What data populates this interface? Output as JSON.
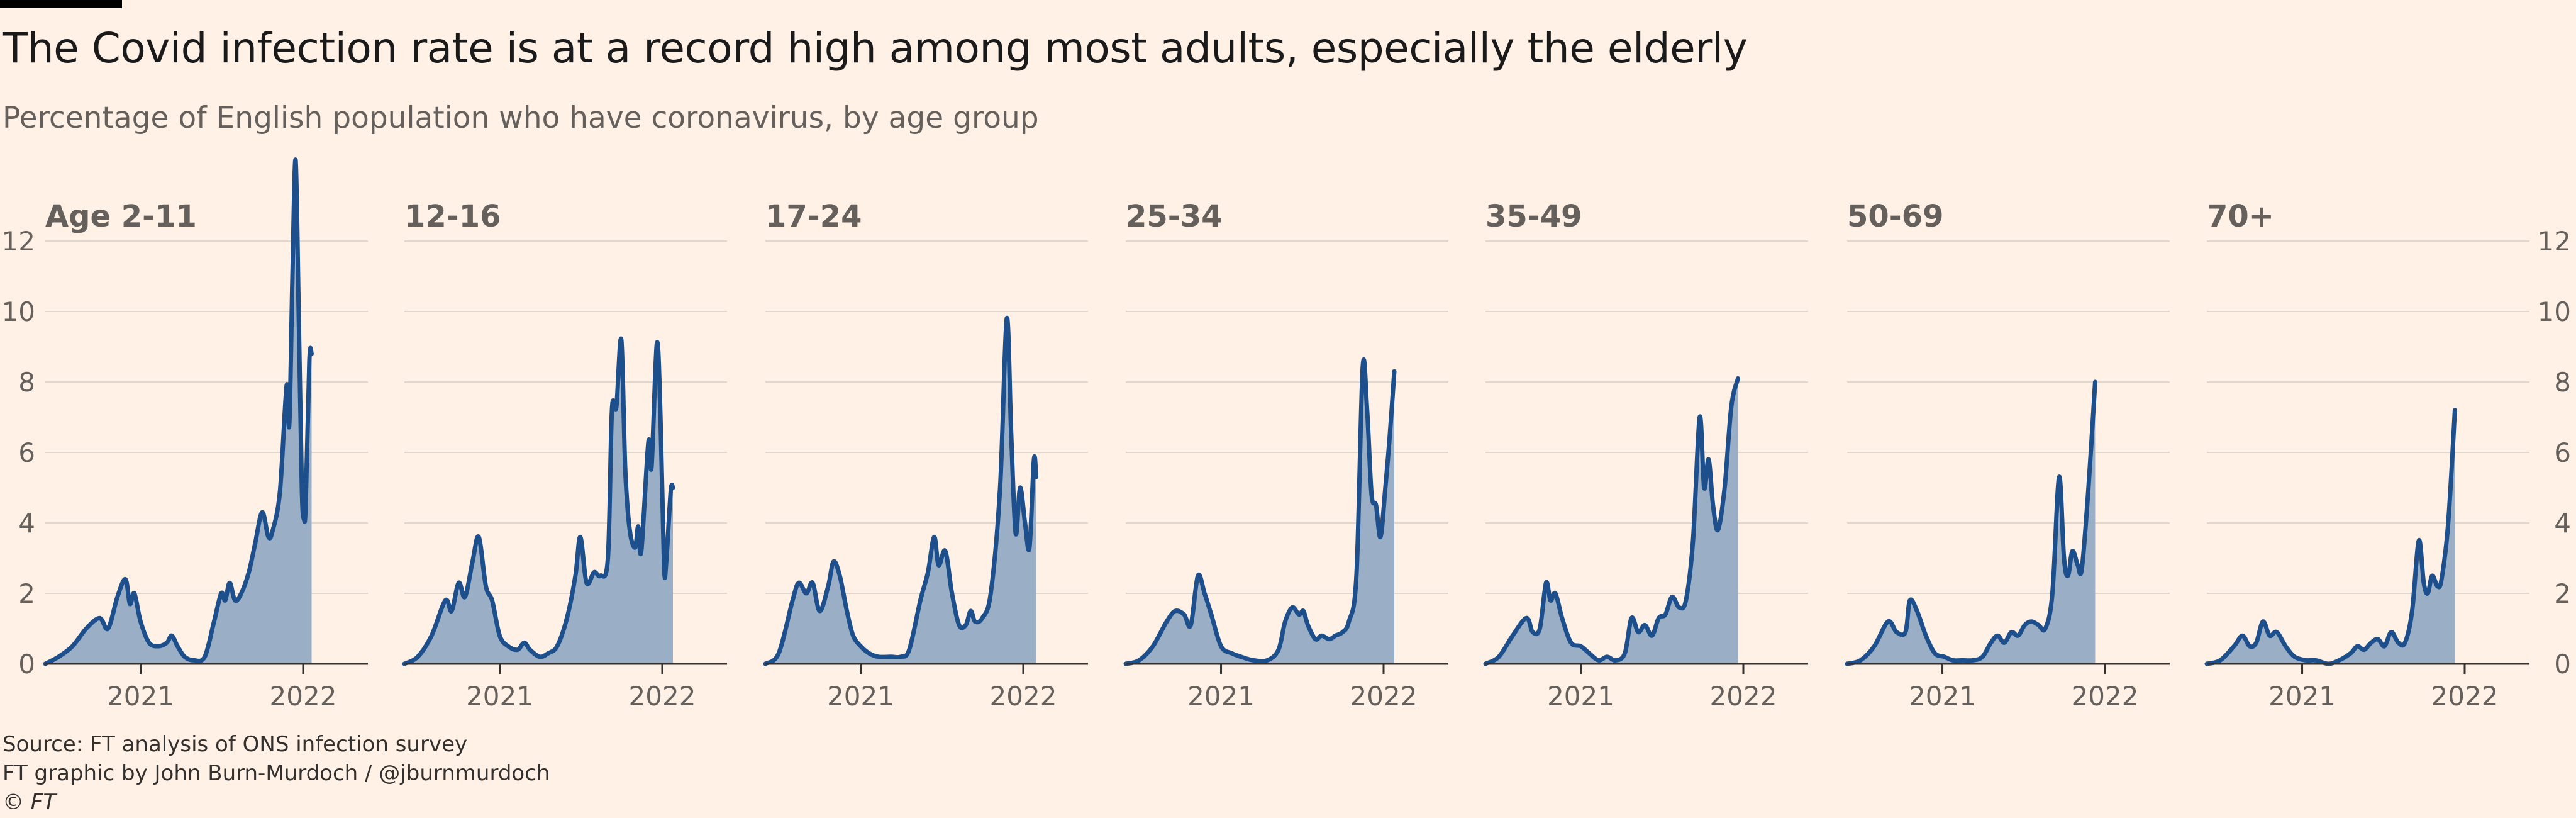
{
  "header": {
    "title": "The Covid infection rate is at a record high among most adults, especially the elderly",
    "subtitle": "Percentage of English population who have coronavirus, by age group"
  },
  "footer": {
    "source": "Source: FT analysis of ONS infection survey",
    "credit": "FT graphic by John Burn-Murdoch / @jburnmurdoch",
    "copyright": "© FT"
  },
  "colors": {
    "background": "#fff1e5",
    "line": "#1c4f8c",
    "area": "#9aafc5",
    "grid": "#e0d7cf",
    "axis": "#33302e",
    "text": "#66605c"
  },
  "chart_data": {
    "type": "area",
    "layout": "small-multiples",
    "ylim": [
      0,
      14
    ],
    "yticks": [
      0,
      2,
      4,
      6,
      8,
      10,
      12
    ],
    "x_range": [
      "2020-06-01",
      "2022-01-10"
    ],
    "x_ticks": [
      {
        "date": "2021-01-01",
        "label": "2021"
      },
      {
        "date": "2022-01-01",
        "label": "2022"
      }
    ],
    "grid": true,
    "series": [
      {
        "name": "Age 2-11",
        "points": [
          [
            "2020-06-01",
            0
          ],
          [
            "2020-07-01",
            0.2
          ],
          [
            "2020-08-01",
            0.5
          ],
          [
            "2020-09-01",
            1.0
          ],
          [
            "2020-10-01",
            1.3
          ],
          [
            "2020-10-20",
            1.0
          ],
          [
            "2020-11-10",
            1.9
          ],
          [
            "2020-11-28",
            2.4
          ],
          [
            "2020-12-08",
            1.7
          ],
          [
            "2020-12-18",
            2.0
          ],
          [
            "2021-01-01",
            1.2
          ],
          [
            "2021-01-20",
            0.6
          ],
          [
            "2021-02-10",
            0.5
          ],
          [
            "2021-03-01",
            0.6
          ],
          [
            "2021-03-12",
            0.8
          ],
          [
            "2021-03-25",
            0.5
          ],
          [
            "2021-04-10",
            0.2
          ],
          [
            "2021-05-01",
            0.1
          ],
          [
            "2021-05-25",
            0.2
          ],
          [
            "2021-06-15",
            1.2
          ],
          [
            "2021-07-01",
            2.0
          ],
          [
            "2021-07-10",
            1.8
          ],
          [
            "2021-07-20",
            2.3
          ],
          [
            "2021-08-01",
            1.8
          ],
          [
            "2021-08-15",
            2.0
          ],
          [
            "2021-09-01",
            2.6
          ],
          [
            "2021-09-15",
            3.4
          ],
          [
            "2021-10-01",
            4.3
          ],
          [
            "2021-10-15",
            3.6
          ],
          [
            "2021-10-25",
            3.8
          ],
          [
            "2021-11-10",
            4.9
          ],
          [
            "2021-11-25",
            7.9
          ],
          [
            "2021-12-01",
            6.8
          ],
          [
            "2021-12-08",
            11.0
          ],
          [
            "2021-12-15",
            14.3
          ],
          [
            "2021-12-22",
            10.0
          ],
          [
            "2021-12-29",
            5.0
          ],
          [
            "2022-01-03",
            4.1
          ],
          [
            "2022-01-07",
            4.6
          ],
          [
            "2022-01-15",
            8.6
          ],
          [
            "2022-01-20",
            8.8
          ]
        ]
      },
      {
        "name": "12-16",
        "points": [
          [
            "2020-06-01",
            0
          ],
          [
            "2020-07-01",
            0.2
          ],
          [
            "2020-08-01",
            0.8
          ],
          [
            "2020-09-01",
            1.8
          ],
          [
            "2020-09-15",
            1.5
          ],
          [
            "2020-10-01",
            2.3
          ],
          [
            "2020-10-15",
            1.9
          ],
          [
            "2020-11-01",
            2.9
          ],
          [
            "2020-11-15",
            3.6
          ],
          [
            "2020-12-01",
            2.2
          ],
          [
            "2020-12-15",
            1.8
          ],
          [
            "2021-01-01",
            0.8
          ],
          [
            "2021-01-20",
            0.5
          ],
          [
            "2021-02-10",
            0.4
          ],
          [
            "2021-02-25",
            0.6
          ],
          [
            "2021-03-10",
            0.4
          ],
          [
            "2021-04-01",
            0.2
          ],
          [
            "2021-04-20",
            0.3
          ],
          [
            "2021-05-10",
            0.5
          ],
          [
            "2021-06-01",
            1.3
          ],
          [
            "2021-06-20",
            2.5
          ],
          [
            "2021-07-01",
            3.6
          ],
          [
            "2021-07-15",
            2.3
          ],
          [
            "2021-08-01",
            2.6
          ],
          [
            "2021-08-15",
            2.5
          ],
          [
            "2021-09-01",
            3.0
          ],
          [
            "2021-09-10",
            7.2
          ],
          [
            "2021-09-20",
            7.3
          ],
          [
            "2021-10-01",
            9.2
          ],
          [
            "2021-10-10",
            5.5
          ],
          [
            "2021-10-20",
            3.8
          ],
          [
            "2021-11-01",
            3.3
          ],
          [
            "2021-11-08",
            3.9
          ],
          [
            "2021-11-15",
            3.2
          ],
          [
            "2021-12-01",
            6.3
          ],
          [
            "2021-12-08",
            5.6
          ],
          [
            "2021-12-20",
            9.1
          ],
          [
            "2021-12-28",
            7.0
          ],
          [
            "2022-01-05",
            2.8
          ],
          [
            "2022-01-10",
            2.9
          ],
          [
            "2022-01-20",
            4.9
          ],
          [
            "2022-01-25",
            5.0
          ]
        ]
      },
      {
        "name": "17-24",
        "points": [
          [
            "2020-06-01",
            0
          ],
          [
            "2020-07-01",
            0.3
          ],
          [
            "2020-08-01",
            1.8
          ],
          [
            "2020-08-15",
            2.3
          ],
          [
            "2020-09-01",
            2.0
          ],
          [
            "2020-09-15",
            2.3
          ],
          [
            "2020-10-01",
            1.5
          ],
          [
            "2020-10-20",
            2.2
          ],
          [
            "2020-11-01",
            2.9
          ],
          [
            "2020-11-15",
            2.5
          ],
          [
            "2020-12-01",
            1.5
          ],
          [
            "2020-12-15",
            0.8
          ],
          [
            "2021-01-01",
            0.5
          ],
          [
            "2021-01-20",
            0.3
          ],
          [
            "2021-02-10",
            0.2
          ],
          [
            "2021-03-10",
            0.2
          ],
          [
            "2021-04-01",
            0.2
          ],
          [
            "2021-04-20",
            0.4
          ],
          [
            "2021-05-15",
            1.8
          ],
          [
            "2021-06-01",
            2.6
          ],
          [
            "2021-06-15",
            3.6
          ],
          [
            "2021-06-25",
            2.8
          ],
          [
            "2021-07-10",
            3.2
          ],
          [
            "2021-07-25",
            2.0
          ],
          [
            "2021-08-10",
            1.1
          ],
          [
            "2021-08-25",
            1.1
          ],
          [
            "2021-09-05",
            1.5
          ],
          [
            "2021-09-15",
            1.2
          ],
          [
            "2021-10-01",
            1.3
          ],
          [
            "2021-10-20",
            2.0
          ],
          [
            "2021-11-10",
            5.0
          ],
          [
            "2021-11-25",
            9.8
          ],
          [
            "2021-12-05",
            6.5
          ],
          [
            "2021-12-15",
            3.7
          ],
          [
            "2021-12-25",
            5.0
          ],
          [
            "2022-01-05",
            4.0
          ],
          [
            "2022-01-15",
            3.3
          ],
          [
            "2022-01-25",
            5.8
          ],
          [
            "2022-01-30",
            5.3
          ]
        ]
      },
      {
        "name": "25-34",
        "points": [
          [
            "2020-06-01",
            0
          ],
          [
            "2020-07-01",
            0.1
          ],
          [
            "2020-08-01",
            0.5
          ],
          [
            "2020-09-01",
            1.2
          ],
          [
            "2020-09-20",
            1.5
          ],
          [
            "2020-10-10",
            1.4
          ],
          [
            "2020-10-25",
            1.1
          ],
          [
            "2020-11-10",
            2.5
          ],
          [
            "2020-11-25",
            2.0
          ],
          [
            "2020-12-10",
            1.4
          ],
          [
            "2021-01-01",
            0.5
          ],
          [
            "2021-01-25",
            0.3
          ],
          [
            "2021-02-15",
            0.2
          ],
          [
            "2021-03-15",
            0.1
          ],
          [
            "2021-04-15",
            0.1
          ],
          [
            "2021-05-10",
            0.4
          ],
          [
            "2021-05-25",
            1.2
          ],
          [
            "2021-06-10",
            1.6
          ],
          [
            "2021-06-25",
            1.4
          ],
          [
            "2021-07-05",
            1.5
          ],
          [
            "2021-07-15",
            1.1
          ],
          [
            "2021-08-01",
            0.7
          ],
          [
            "2021-08-15",
            0.8
          ],
          [
            "2021-09-01",
            0.7
          ],
          [
            "2021-09-15",
            0.8
          ],
          [
            "2021-10-01",
            0.9
          ],
          [
            "2021-10-15",
            1.2
          ],
          [
            "2021-11-01",
            2.5
          ],
          [
            "2021-11-15",
            8.4
          ],
          [
            "2021-11-25",
            7.2
          ],
          [
            "2021-12-05",
            4.8
          ],
          [
            "2021-12-15",
            4.5
          ],
          [
            "2021-12-25",
            3.6
          ],
          [
            "2022-01-05",
            5.0
          ],
          [
            "2022-01-15",
            6.5
          ],
          [
            "2022-01-25",
            8.3
          ]
        ]
      },
      {
        "name": "35-49",
        "points": [
          [
            "2020-06-01",
            0
          ],
          [
            "2020-07-01",
            0.2
          ],
          [
            "2020-08-01",
            0.8
          ],
          [
            "2020-09-01",
            1.3
          ],
          [
            "2020-09-15",
            0.9
          ],
          [
            "2020-10-01",
            1.0
          ],
          [
            "2020-10-15",
            2.3
          ],
          [
            "2020-10-25",
            1.8
          ],
          [
            "2020-11-05",
            2.0
          ],
          [
            "2020-11-20",
            1.3
          ],
          [
            "2020-12-10",
            0.6
          ],
          [
            "2021-01-01",
            0.5
          ],
          [
            "2021-01-20",
            0.3
          ],
          [
            "2021-02-10",
            0.1
          ],
          [
            "2021-03-01",
            0.2
          ],
          [
            "2021-03-20",
            0.1
          ],
          [
            "2021-04-10",
            0.3
          ],
          [
            "2021-04-25",
            1.3
          ],
          [
            "2021-05-10",
            0.9
          ],
          [
            "2021-05-25",
            1.1
          ],
          [
            "2021-06-10",
            0.8
          ],
          [
            "2021-06-25",
            1.3
          ],
          [
            "2021-07-10",
            1.4
          ],
          [
            "2021-07-25",
            1.9
          ],
          [
            "2021-08-10",
            1.6
          ],
          [
            "2021-08-25",
            1.8
          ],
          [
            "2021-09-10",
            3.5
          ],
          [
            "2021-09-25",
            7.0
          ],
          [
            "2021-10-05",
            5.0
          ],
          [
            "2021-10-15",
            5.8
          ],
          [
            "2021-10-25",
            4.5
          ],
          [
            "2021-11-05",
            3.8
          ],
          [
            "2021-11-20",
            5.0
          ],
          [
            "2021-12-05",
            7.3
          ],
          [
            "2021-12-20",
            8.1
          ]
        ]
      },
      {
        "name": "50-69",
        "points": [
          [
            "2020-06-01",
            0
          ],
          [
            "2020-07-01",
            0.1
          ],
          [
            "2020-08-01",
            0.5
          ],
          [
            "2020-09-01",
            1.2
          ],
          [
            "2020-09-20",
            0.9
          ],
          [
            "2020-10-10",
            0.9
          ],
          [
            "2020-10-20",
            1.8
          ],
          [
            "2020-11-05",
            1.5
          ],
          [
            "2020-11-25",
            0.8
          ],
          [
            "2020-12-15",
            0.3
          ],
          [
            "2021-01-05",
            0.2
          ],
          [
            "2021-01-25",
            0.1
          ],
          [
            "2021-02-15",
            0.1
          ],
          [
            "2021-03-10",
            0.1
          ],
          [
            "2021-04-01",
            0.2
          ],
          [
            "2021-04-20",
            0.6
          ],
          [
            "2021-05-05",
            0.8
          ],
          [
            "2021-05-20",
            0.6
          ],
          [
            "2021-06-05",
            0.9
          ],
          [
            "2021-06-20",
            0.8
          ],
          [
            "2021-07-05",
            1.1
          ],
          [
            "2021-07-20",
            1.2
          ],
          [
            "2021-08-05",
            1.1
          ],
          [
            "2021-08-20",
            1.0
          ],
          [
            "2021-09-05",
            2.0
          ],
          [
            "2021-09-20",
            5.3
          ],
          [
            "2021-10-01",
            3.0
          ],
          [
            "2021-10-10",
            2.5
          ],
          [
            "2021-10-20",
            3.2
          ],
          [
            "2021-11-01",
            2.8
          ],
          [
            "2021-11-10",
            2.7
          ],
          [
            "2021-11-25",
            5.0
          ],
          [
            "2021-12-10",
            8.0
          ]
        ]
      },
      {
        "name": "70+",
        "points": [
          [
            "2020-06-01",
            0
          ],
          [
            "2020-07-01",
            0.1
          ],
          [
            "2020-08-01",
            0.5
          ],
          [
            "2020-08-20",
            0.8
          ],
          [
            "2020-09-05",
            0.5
          ],
          [
            "2020-09-20",
            0.6
          ],
          [
            "2020-10-05",
            1.2
          ],
          [
            "2020-10-20",
            0.8
          ],
          [
            "2020-11-05",
            0.9
          ],
          [
            "2020-11-25",
            0.5
          ],
          [
            "2020-12-15",
            0.2
          ],
          [
            "2021-01-10",
            0.1
          ],
          [
            "2021-02-01",
            0.1
          ],
          [
            "2021-03-01",
            0.0
          ],
          [
            "2021-03-25",
            0.1
          ],
          [
            "2021-04-20",
            0.3
          ],
          [
            "2021-05-05",
            0.5
          ],
          [
            "2021-05-20",
            0.4
          ],
          [
            "2021-06-05",
            0.6
          ],
          [
            "2021-06-20",
            0.7
          ],
          [
            "2021-07-05",
            0.5
          ],
          [
            "2021-07-20",
            0.9
          ],
          [
            "2021-08-05",
            0.6
          ],
          [
            "2021-08-20",
            0.6
          ],
          [
            "2021-09-05",
            1.5
          ],
          [
            "2021-09-20",
            3.5
          ],
          [
            "2021-10-01",
            2.3
          ],
          [
            "2021-10-10",
            2.0
          ],
          [
            "2021-10-20",
            2.5
          ],
          [
            "2021-11-01",
            2.2
          ],
          [
            "2021-11-10",
            2.4
          ],
          [
            "2021-11-25",
            4.0
          ],
          [
            "2021-12-10",
            7.2
          ]
        ]
      }
    ]
  }
}
